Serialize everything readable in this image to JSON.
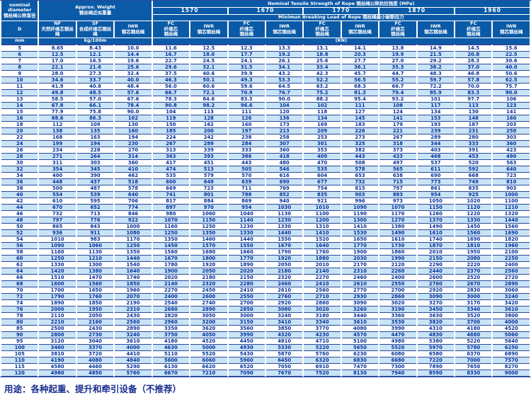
{
  "colors": {
    "header_bg": "#0b5aa7",
    "row_alt_bg": "#c9e4f7",
    "data_text": "#06329e",
    "grid_line": "#2a4a9b"
  },
  "header": {
    "nominal_diameter_en": "nominal diameter",
    "nominal_diameter_cn": "钢丝绳公称直径",
    "approx_weight_en": "Approx. Weight",
    "approx_weight_cn": "钢丝绳近似重量",
    "tensile_title": "Nominal Tensile Strength of Rope 钢丝绳公称抗拉强度 (MPa)",
    "strengths": [
      "1570",
      "1670",
      "1770",
      "1870",
      "1960"
    ],
    "breaking_title": "Minimun Breaking Load of Rope 钢丝绳最小破断拉力",
    "col_d": "D",
    "nf_label": "NF",
    "nf_cn": "天然纤维芯钢丝绳",
    "sf_label": "SF",
    "sf_cn": "合成纤维芯钢丝绳",
    "iwr_label": "IWR",
    "iwr_cn": "钢芯钢丝绳",
    "fc_label": "FC",
    "fc_cn_lines": [
      "纤维芯",
      "钢丝绳"
    ],
    "unit_mm": "mm",
    "unit_kg": "kg/100m",
    "unit_kn": "(KN)"
  },
  "rows": [
    [
      "5",
      "8.65",
      "8.43",
      "10.0",
      "11.6",
      "12.5",
      "12.3",
      "13.3",
      "13.1",
      "14.1",
      "13.8",
      "14.9",
      "14.5",
      "15.6"
    ],
    [
      "6",
      "12.5",
      "12.1",
      "14.4",
      "16.7",
      "18.0",
      "17.7",
      "19.2",
      "18.8",
      "20.3",
      "19.9",
      "21.5",
      "20.8",
      "22.5"
    ],
    [
      "7",
      "17.0",
      "16.5",
      "19.6",
      "22.7",
      "24.5",
      "24.1",
      "26.1",
      "25.6",
      "27.7",
      "27.0",
      "29.2",
      "28.3",
      "30.6"
    ],
    [
      "8",
      "22.1",
      "21.6",
      "25.6",
      "29.6",
      "32.1",
      "31.5",
      "34.1",
      "33.4",
      "36.1",
      "35.3",
      "38.2",
      "37.0",
      "40.0"
    ],
    [
      "9",
      "28.0",
      "27.3",
      "32.4",
      "37.5",
      "40.6",
      "39.9",
      "43.2",
      "42.3",
      "45.7",
      "44.7",
      "48.3",
      "46.8",
      "50.6"
    ],
    [
      "10",
      "34.6",
      "33.7",
      "40.0",
      "46.3",
      "50.1",
      "49.3",
      "53.3",
      "52.2",
      "56.5",
      "55.2",
      "59.7",
      "57.8",
      "62.5"
    ],
    [
      "11",
      "41.9",
      "40.8",
      "48.4",
      "56.0",
      "60.6",
      "59.6",
      "64.5",
      "63.2",
      "68.3",
      "66.7",
      "72.2",
      "70.0",
      "75.7"
    ],
    [
      "12",
      "49.8",
      "48.5",
      "57.6",
      "66.7",
      "72.1",
      "70.9",
      "76.7",
      "75.2",
      "81.3",
      "79.4",
      "85.9",
      "83.3",
      "90.0"
    ],
    [
      "13",
      "58.5",
      "57.0",
      "67.6",
      "78.3",
      "84.6",
      "83.3",
      "90.0",
      "88.2",
      "95.4",
      "93.2",
      "101",
      "97.7",
      "106"
    ],
    [
      "14",
      "67.8",
      "66.1",
      "78.4",
      "90.8",
      "98.2",
      "96.6",
      "104",
      "102",
      "111",
      "108",
      "117",
      "113",
      "123"
    ],
    [
      "15",
      "77.9",
      "75.8",
      "90.0",
      "104",
      "113",
      "111",
      "120",
      "118",
      "127",
      "124",
      "134",
      "130",
      "141"
    ],
    [
      "16",
      "88.6",
      "86.3",
      "102",
      "119",
      "128",
      "126",
      "136",
      "134",
      "145",
      "141",
      "153",
      "148",
      "160"
    ],
    [
      "18",
      "112",
      "109",
      "130",
      "150",
      "162",
      "160",
      "173",
      "169",
      "183",
      "179",
      "193",
      "187",
      "203"
    ],
    [
      "20",
      "138",
      "135",
      "160",
      "185",
      "200",
      "197",
      "213",
      "209",
      "226",
      "221",
      "239",
      "231",
      "250"
    ],
    [
      "22",
      "168",
      "163",
      "194",
      "224",
      "242",
      "238",
      "258",
      "253",
      "273",
      "267",
      "289",
      "280",
      "303"
    ],
    [
      "24",
      "199",
      "194",
      "230",
      "267",
      "289",
      "284",
      "307",
      "301",
      "325",
      "318",
      "344",
      "333",
      "360"
    ],
    [
      "26",
      "234",
      "228",
      "270",
      "313",
      "339",
      "333",
      "360",
      "353",
      "382",
      "373",
      "403",
      "391",
      "423"
    ],
    [
      "28",
      "271",
      "264",
      "314",
      "363",
      "393",
      "386",
      "418",
      "409",
      "443",
      "433",
      "468",
      "453",
      "490"
    ],
    [
      "30",
      "311",
      "303",
      "360",
      "417",
      "451",
      "443",
      "480",
      "470",
      "508",
      "497",
      "537",
      "520",
      "563"
    ],
    [
      "32",
      "354",
      "345",
      "410",
      "474",
      "513",
      "505",
      "546",
      "535",
      "578",
      "565",
      "611",
      "592",
      "640"
    ],
    [
      "34",
      "400",
      "390",
      "462",
      "535",
      "579",
      "570",
      "616",
      "604",
      "653",
      "638",
      "690",
      "668",
      "723"
    ],
    [
      "36",
      "448",
      "437",
      "518",
      "600",
      "649",
      "639",
      "690",
      "677",
      "732",
      "715",
      "773",
      "749",
      "810"
    ],
    [
      "38",
      "500",
      "487",
      "578",
      "669",
      "723",
      "711",
      "769",
      "754",
      "815",
      "797",
      "861",
      "835",
      "903"
    ],
    [
      "40",
      "554",
      "539",
      "640",
      "741",
      "801",
      "788",
      "852",
      "835",
      "903",
      "883",
      "954",
      "925",
      "1000"
    ],
    [
      "42",
      "610",
      "595",
      "706",
      "817",
      "884",
      "869",
      "940",
      "921",
      "996",
      "973",
      "1050",
      "1020",
      "1100"
    ],
    [
      "44",
      "670",
      "652",
      "774",
      "897",
      "970",
      "954",
      "1030",
      "1010",
      "1090",
      "1070",
      "1150",
      "1120",
      "1210"
    ],
    [
      "46",
      "732",
      "713",
      "846",
      "980",
      "1060",
      "1040",
      "1130",
      "1100",
      "1190",
      "1170",
      "1260",
      "1220",
      "1320"
    ],
    [
      "48",
      "797",
      "776",
      "922",
      "1070",
      "1150",
      "1140",
      "1230",
      "1200",
      "1300",
      "1270",
      "1370",
      "1330",
      "1440"
    ],
    [
      "50",
      "865",
      "843",
      "1000",
      "1160",
      "1250",
      "1230",
      "1330",
      "1310",
      "1410",
      "1380",
      "1490",
      "1450",
      "1560"
    ],
    [
      "52",
      "936",
      "911",
      "1080",
      "1250",
      "1350",
      "1330",
      "1440",
      "1410",
      "1530",
      "1490",
      "1610",
      "1560",
      "1690"
    ],
    [
      "54",
      "1010",
      "983",
      "1170",
      "1350",
      "1460",
      "1440",
      "1550",
      "1520",
      "1650",
      "1610",
      "1740",
      "1690",
      "1820"
    ],
    [
      "56",
      "1090",
      "1060",
      "1250",
      "1450",
      "1570",
      "1550",
      "1670",
      "1640",
      "1770",
      "1730",
      "1870",
      "1810",
      "1960"
    ],
    [
      "58",
      "1160",
      "1130",
      "1350",
      "1560",
      "1680",
      "1660",
      "1790",
      "1760",
      "1900",
      "1860",
      "2010",
      "1950",
      "2100"
    ],
    [
      "60",
      "1250",
      "1210",
      "1440",
      "1670",
      "1800",
      "1770",
      "1920",
      "1880",
      "2030",
      "1990",
      "2150",
      "2080",
      "2250"
    ],
    [
      "62",
      "1330",
      "1300",
      "1540",
      "1780",
      "1920",
      "1890",
      "2050",
      "2010",
      "2170",
      "2120",
      "2290",
      "2220",
      "2400"
    ],
    [
      "64",
      "1420",
      "1380",
      "1640",
      "1900",
      "2050",
      "2020",
      "2180",
      "2140",
      "2310",
      "2260",
      "2440",
      "2370",
      "2560"
    ],
    [
      "66",
      "1510",
      "1470",
      "1740",
      "2020",
      "2180",
      "2150",
      "2320",
      "2270",
      "2460",
      "2400",
      "2600",
      "2520",
      "2720"
    ],
    [
      "68",
      "1600",
      "1560",
      "1850",
      "2140",
      "2320",
      "2280",
      "2460",
      "2410",
      "2610",
      "2550",
      "2760",
      "2670",
      "2890"
    ],
    [
      "70",
      "1700",
      "1650",
      "1960",
      "2270",
      "2450",
      "2410",
      "2610",
      "2560",
      "2770",
      "2700",
      "2920",
      "2830",
      "3060"
    ],
    [
      "72",
      "1790",
      "1760",
      "2070",
      "2400",
      "2600",
      "2550",
      "2760",
      "2710",
      "2930",
      "2860",
      "3090",
      "3000",
      "3240"
    ],
    [
      "74",
      "1890",
      "1850",
      "2190",
      "2540",
      "2740",
      "2700",
      "2920",
      "2860",
      "3090",
      "3020",
      "3270",
      "3170",
      "3420"
    ],
    [
      "76",
      "2000",
      "1950",
      "2310",
      "2680",
      "2890",
      "2850",
      "3080",
      "3020",
      "3260",
      "3190",
      "3450",
      "3340",
      "3610"
    ],
    [
      "78",
      "2110",
      "2050",
      "2430",
      "2820",
      "3050",
      "3000",
      "3240",
      "3180",
      "3440",
      "3360",
      "3630",
      "3520",
      "3800"
    ],
    [
      "80",
      "2210",
      "2160",
      "2560",
      "2960",
      "3200",
      "3150",
      "3410",
      "3340",
      "3610",
      "3530",
      "3820",
      "3700",
      "4000"
    ],
    [
      "85",
      "2500",
      "2430",
      "2890",
      "3350",
      "3620",
      "3560",
      "3850",
      "3770",
      "4080",
      "3990",
      "4310",
      "4180",
      "4520"
    ],
    [
      "90",
      "2800",
      "2730",
      "3240",
      "3750",
      "4050",
      "3990",
      "4320",
      "4230",
      "4570",
      "4470",
      "4830",
      "4680",
      "5060"
    ],
    [
      "95",
      "3120",
      "3040",
      "3610",
      "4180",
      "4520",
      "4450",
      "4810",
      "4710",
      "5100",
      "4980",
      "5380",
      "5220",
      "5640"
    ],
    [
      "100",
      "3460",
      "3370",
      "4000",
      "4630",
      "5000",
      "4930",
      "5330",
      "5220",
      "5650",
      "5520",
      "5970",
      "5780",
      "6250"
    ],
    [
      "105",
      "3810",
      "3720",
      "4410",
      "5110",
      "5520",
      "5430",
      "5870",
      "5760",
      "6230",
      "6080",
      "6580",
      "6370",
      "6890"
    ],
    [
      "110",
      "4190",
      "4080",
      "4840",
      "5600",
      "6060",
      "5960",
      "6450",
      "6320",
      "6830",
      "6680",
      "7220",
      "7000",
      "7570"
    ],
    [
      "115",
      "4580",
      "4460",
      "5290",
      "6130",
      "6620",
      "6520",
      "7050",
      "6910",
      "7470",
      "7300",
      "7890",
      "7650",
      "8270"
    ],
    [
      "120",
      "4980",
      "4850",
      "5760",
      "6670",
      "7210",
      "7090",
      "7670",
      "7520",
      "8130",
      "7940",
      "8590",
      "8330",
      "9000"
    ]
  ],
  "footer": {
    "text": "用途：各种起重、提升和牵引设备（不推荐）"
  }
}
